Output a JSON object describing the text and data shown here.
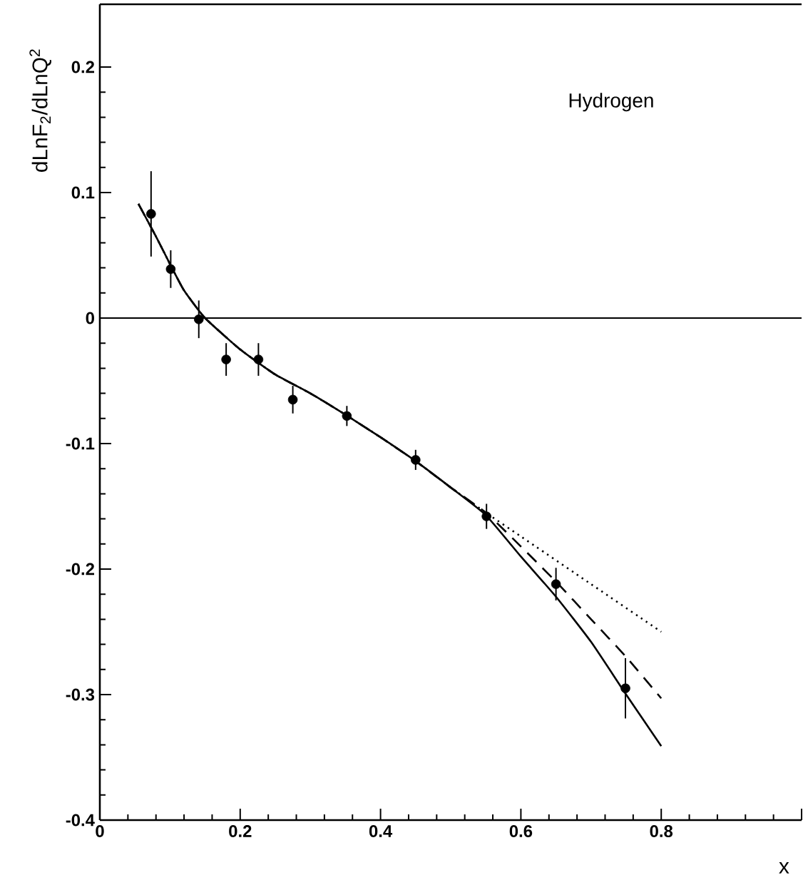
{
  "chart_data": {
    "type": "line",
    "xlabel": "x",
    "ylabel": "dLnF$_{2}$/dLnQ$^{2}$",
    "annotations": [
      "Hydrogen"
    ],
    "xlim": [
      0,
      1
    ],
    "ylim": [
      -0.4,
      0.25
    ],
    "xticks": [
      0,
      0.2,
      0.4,
      0.6,
      0.8,
      {
        "value": 1,
        "label": null
      }
    ],
    "yticks": [
      -0.4,
      -0.3,
      -0.2,
      -0.1,
      0,
      0.1,
      0.2
    ],
    "ref_lines": [
      {
        "axis": "y",
        "value": 0,
        "color": "#000000"
      }
    ],
    "series": [
      {
        "type": "scatter",
        "color": "#000000",
        "marker": "circle",
        "x": [
          0.073,
          0.101,
          0.141,
          0.18,
          0.226,
          0.275,
          0.352,
          0.45,
          0.551,
          0.65,
          0.749
        ],
        "values": [
          0.083,
          0.039,
          -0.001,
          -0.033,
          -0.033,
          -0.065,
          -0.078,
          -0.113,
          -0.158,
          -0.212,
          -0.295
        ],
        "errors": [
          0.034,
          0.015,
          0.015,
          0.013,
          0.013,
          0.011,
          0.008,
          0.008,
          0.01,
          0.013,
          0.024
        ]
      },
      {
        "color": "#000000",
        "marker": "none",
        "line_style": "solid",
        "x": [
          0.055,
          0.08,
          0.1,
          0.12,
          0.15,
          0.2,
          0.25,
          0.3,
          0.35,
          0.4,
          0.45,
          0.5,
          0.55,
          0.6,
          0.65,
          0.7,
          0.75,
          0.8
        ],
        "values": [
          0.091,
          0.065,
          0.043,
          0.022,
          0.0,
          -0.025,
          -0.045,
          -0.06,
          -0.077,
          -0.095,
          -0.114,
          -0.135,
          -0.157,
          -0.19,
          -0.222,
          -0.258,
          -0.3,
          -0.341
        ]
      },
      {
        "color": "#000000",
        "marker": "none",
        "line_style": "dashed",
        "x": [
          0.055,
          0.08,
          0.1,
          0.12,
          0.15,
          0.2,
          0.25,
          0.3,
          0.35,
          0.4,
          0.45,
          0.5,
          0.55,
          0.6,
          0.65,
          0.7,
          0.75,
          0.8
        ],
        "values": [
          0.091,
          0.065,
          0.043,
          0.022,
          0.0,
          -0.025,
          -0.045,
          -0.06,
          -0.077,
          -0.095,
          -0.114,
          -0.135,
          -0.155,
          -0.182,
          -0.21,
          -0.24,
          -0.27,
          -0.303
        ]
      },
      {
        "color": "#000000",
        "marker": "none",
        "line_style": "dotted",
        "x": [
          0.055,
          0.08,
          0.1,
          0.12,
          0.15,
          0.2,
          0.25,
          0.3,
          0.35,
          0.4,
          0.45,
          0.5,
          0.55,
          0.6,
          0.7,
          0.8
        ],
        "values": [
          0.091,
          0.065,
          0.043,
          0.022,
          0.0,
          -0.025,
          -0.045,
          -0.06,
          -0.077,
          -0.095,
          -0.114,
          -0.135,
          -0.155,
          -0.174,
          -0.212,
          -0.25
        ]
      }
    ]
  }
}
